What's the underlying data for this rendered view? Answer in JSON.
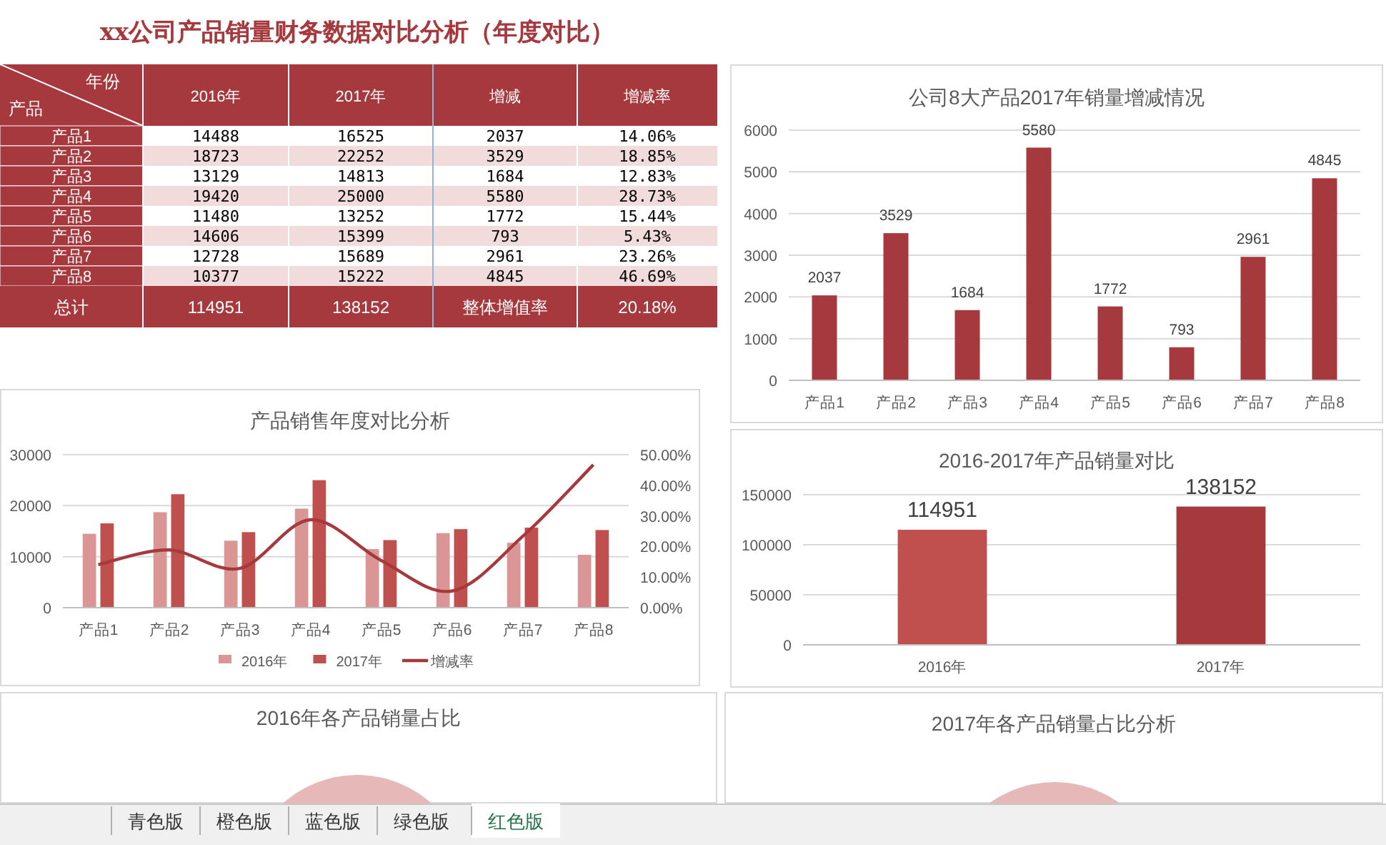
{
  "chart_data": [
    {
      "type": "other",
      "title": "xx公司产品销量财务数据对比分析（年度对比）",
      "xlabel": "产品",
      "legend_title": "年份",
      "categories": [
        "产品1",
        "产品2",
        "产品3",
        "产品4",
        "产品5",
        "产品6",
        "产品7",
        "产品8"
      ],
      "series": [
        {
          "name": "2016年",
          "values": [
            14488,
            18723,
            13129,
            19420,
            11480,
            14606,
            12728,
            10377
          ]
        },
        {
          "name": "2017年",
          "values": [
            16525,
            22252,
            14813,
            25000,
            13252,
            15399,
            15689,
            15222
          ]
        },
        {
          "name": "增减",
          "values": [
            2037,
            3529,
            1684,
            5580,
            1772,
            793,
            2961,
            4845
          ]
        },
        {
          "name": "增减率",
          "values": [
            14.06,
            18.85,
            12.83,
            28.73,
            15.44,
            5.43,
            23.26,
            46.69
          ],
          "value_labels": [
            "14.06%",
            "18.85%",
            "12.83%",
            "28.73%",
            "15.44%",
            "5.43%",
            "23.26%",
            "46.69%"
          ]
        }
      ],
      "annotations": [
        "总计",
        "114951",
        "138152",
        "整体增值率",
        "20.18%"
      ],
      "data_labels": true
    },
    {
      "type": "bar",
      "title": "公司8大产品2017年销量增减情况",
      "categories": [
        "产品1",
        "产品2",
        "产品3",
        "产品4",
        "产品5",
        "产品6",
        "产品7",
        "产品8"
      ],
      "values": [
        2037,
        3529,
        1684,
        5580,
        1772,
        793,
        2961,
        4845
      ],
      "color": "#a5393d",
      "ylim": [
        0,
        6000
      ],
      "yticks": [
        0,
        1000,
        2000,
        3000,
        4000,
        5000,
        6000
      ],
      "grid": "y",
      "data_labels": true
    },
    {
      "type": "bar",
      "title": "产品销售年度对比分析",
      "categories": [
        "产品1",
        "产品2",
        "产品3",
        "产品4",
        "产品5",
        "产品6",
        "产品7",
        "产品8"
      ],
      "series": [
        {
          "name": "2016年",
          "color": "#d99694",
          "values": [
            14488,
            18723,
            13129,
            19420,
            11480,
            14606,
            12728,
            10377
          ]
        },
        {
          "name": "2017年",
          "color": "#c0504d",
          "values": [
            16525,
            22252,
            14813,
            25000,
            13252,
            15399,
            15689,
            15222
          ]
        },
        {
          "name": "增减率",
          "type": "line",
          "axis": "y2",
          "color": "#a5393d",
          "values": [
            14.06,
            18.85,
            12.83,
            28.73,
            15.44,
            5.43,
            23.26,
            46.69
          ]
        }
      ],
      "ylim": [
        0,
        30000
      ],
      "yticks": [
        0,
        10000,
        20000,
        30000
      ],
      "y2lim": [
        0,
        50
      ],
      "y2ticks": [
        {
          "value": 0,
          "label": "0.00%"
        },
        {
          "value": 10,
          "label": "10.00%"
        },
        {
          "value": 20,
          "label": "20.00%"
        },
        {
          "value": 30,
          "label": "30.00%"
        },
        {
          "value": 40,
          "label": "40.00%"
        },
        {
          "value": 50,
          "label": "50.00%"
        }
      ],
      "grid": "y",
      "legend": "bottom"
    },
    {
      "type": "bar",
      "title": "2016-2017年产品销量对比",
      "categories": [
        "2016年",
        "2017年"
      ],
      "values": [
        114951,
        138152
      ],
      "colors": [
        "#c0504d",
        "#a5393d"
      ],
      "ylim": [
        0,
        150000
      ],
      "yticks": [
        0,
        50000,
        100000,
        150000
      ],
      "grid": "y",
      "data_labels": true
    },
    {
      "type": "other",
      "title": "2016年各产品销量占比"
    },
    {
      "type": "other",
      "title": "2017年各产品销量占比分析"
    },
    {
      "type": "other",
      "annotations": [
        "青色版",
        "橙色版",
        "蓝色版",
        "绿色版",
        "红色版"
      ]
    }
  ]
}
